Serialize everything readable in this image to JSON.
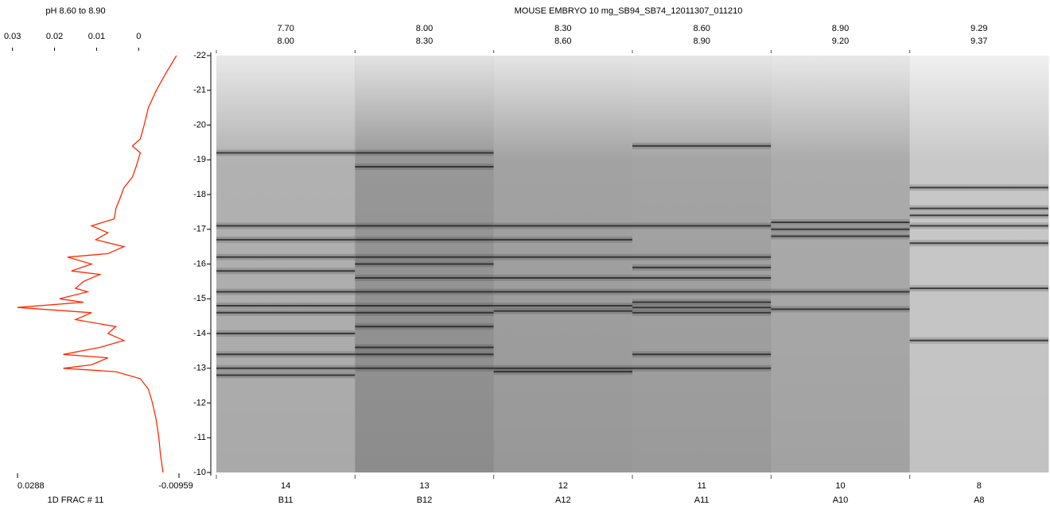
{
  "chart_data": [
    {
      "type": "line",
      "title": "pH  8.60  to  8.90",
      "xlabel": "1D FRAC # 11",
      "xlim": [
        0.0288,
        -0.00959
      ],
      "xticks": [
        0.03,
        0.02,
        0.01,
        0
      ],
      "ylim": [
        -22,
        -10
      ],
      "yticks": [
        -22,
        -21,
        -20,
        -19,
        -18,
        -17,
        -16,
        -15,
        -14,
        -13,
        -12,
        -11,
        -10
      ],
      "series": [
        {
          "color": "#ff2a00",
          "y": [
            -22,
            -21.5,
            -21,
            -20.5,
            -20,
            -19.6,
            -19.4,
            -19.2,
            -18.8,
            -18.5,
            -18.2,
            -17.9,
            -17.6,
            -17.3,
            -17.1,
            -16.9,
            -16.7,
            -16.5,
            -16.3,
            -16.2,
            -16.0,
            -15.8,
            -15.7,
            -15.5,
            -15.3,
            -15.2,
            -15.0,
            -14.9,
            -14.75,
            -14.6,
            -14.4,
            -14.2,
            -14.0,
            -13.8,
            -13.6,
            -13.4,
            -13.3,
            -13.1,
            -13.0,
            -12.9,
            -12.7,
            -12.4,
            -12.0,
            -11.5,
            -11.0,
            -10.5,
            -10.0
          ],
          "values": [
            -0.009,
            -0.0065,
            -0.0042,
            -0.0023,
            -0.0013,
            -0.0004,
            0.0015,
            -0.0004,
            0.0006,
            0.0015,
            0.0035,
            0.0044,
            0.0054,
            0.0058,
            0.0112,
            0.0073,
            0.0102,
            0.0035,
            0.0073,
            0.0169,
            0.0112,
            0.016,
            0.0092,
            0.0131,
            0.015,
            0.0121,
            0.0188,
            0.0131,
            0.0288,
            0.0112,
            0.015,
            0.0054,
            0.0073,
            0.0035,
            0.0092,
            0.0179,
            0.0073,
            0.0112,
            0.0179,
            0.0054,
            -0.0004,
            -0.0023,
            -0.0033,
            -0.0042,
            -0.0048,
            -0.0052,
            -0.0058
          ]
        }
      ]
    },
    {
      "type": "gel",
      "title": "MOUSE EMBRYO 10 mg_SB94_SB74_12011307_011210",
      "lanes": [
        {
          "ph_low": "7.70",
          "ph_high": "8.00",
          "fraction": "14",
          "well": "B11",
          "color": "#a9a9a9",
          "bands": [
            -19.2,
            -17.1,
            -16.7,
            -16.2,
            -15.8,
            -15.2,
            -14.8,
            -14.6,
            -14.0,
            -13.4,
            -13.0,
            -12.8
          ]
        },
        {
          "ph_low": "8.00",
          "ph_high": "8.30",
          "fraction": "13",
          "well": "B12",
          "color": "#8c8c8c",
          "bands": [
            -19.2,
            -18.8,
            -17.1,
            -16.7,
            -16.2,
            -16.0,
            -15.6,
            -15.2,
            -14.8,
            -14.6,
            -14.2,
            -13.6,
            -13.4,
            -13.0
          ]
        },
        {
          "ph_low": "8.30",
          "ph_high": "8.60",
          "fraction": "12",
          "well": "A12",
          "color": "#989898",
          "bands": [
            -17.1,
            -16.7,
            -16.2,
            -15.6,
            -15.2,
            -14.8,
            -14.65,
            -13.0,
            -12.9
          ]
        },
        {
          "ph_low": "8.60",
          "ph_high": "8.90",
          "fraction": "11",
          "well": "A11",
          "color": "#9a9a9a",
          "bands": [
            -19.4,
            -17.1,
            -16.2,
            -15.9,
            -15.6,
            -15.2,
            -14.9,
            -14.75,
            -14.6,
            -13.4,
            -13.0
          ]
        },
        {
          "ph_low": "8.90",
          "ph_high": "9.20",
          "fraction": "10",
          "well": "A10",
          "color": "#a2a2a2",
          "bands": [
            -17.2,
            -17.0,
            -16.8,
            -15.2,
            -14.7
          ]
        },
        {
          "ph_low": "9.29",
          "ph_high": "9.37",
          "fraction": "8",
          "well": "A8",
          "color": "#c2c2c2",
          "bands": [
            -18.2,
            -17.6,
            -17.4,
            -17.1,
            -16.6,
            -15.3,
            -13.8
          ]
        }
      ]
    }
  ]
}
